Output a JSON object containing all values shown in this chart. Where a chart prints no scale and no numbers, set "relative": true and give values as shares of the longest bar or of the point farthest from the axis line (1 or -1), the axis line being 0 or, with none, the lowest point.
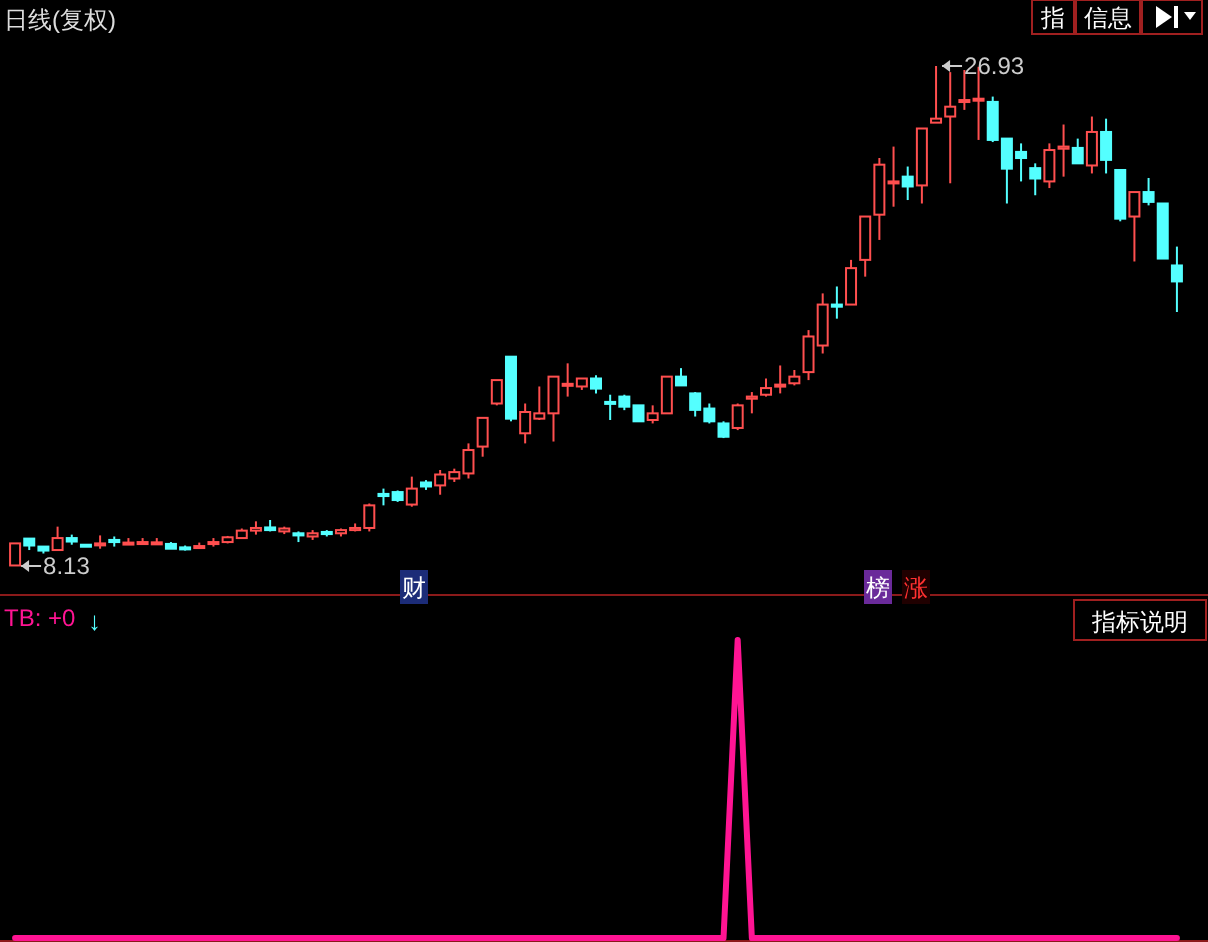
{
  "chart_data": [
    {
      "type": "candlestick",
      "title": "日线(复权)",
      "categories": [
        null,
        null,
        null,
        null,
        null,
        null,
        null,
        null,
        null,
        null,
        null,
        null,
        null,
        null,
        null,
        null,
        null,
        null,
        null,
        null,
        null,
        null,
        null,
        null,
        null,
        null,
        null,
        null,
        null,
        null,
        null,
        null,
        null,
        null,
        null,
        null,
        null,
        null,
        null,
        null,
        null,
        null,
        null,
        null,
        null,
        null,
        null,
        null,
        null,
        null,
        null,
        null,
        null,
        null,
        null,
        null,
        null,
        null,
        null,
        null,
        null,
        null,
        null,
        null,
        null,
        null,
        null,
        null,
        null,
        null,
        null,
        null,
        null,
        null,
        null,
        null,
        null,
        null,
        null,
        null,
        null,
        null,
        null
      ],
      "ohlc": [
        [
          8.15,
          8.98,
          8.13,
          8.98
        ],
        [
          9.16,
          9.16,
          8.73,
          8.9
        ],
        [
          8.86,
          8.86,
          8.6,
          8.71
        ],
        [
          8.73,
          9.61,
          8.73,
          9.18
        ],
        [
          9.18,
          9.31,
          8.93,
          9.05
        ],
        [
          8.93,
          8.93,
          8.86,
          8.86
        ],
        [
          8.93,
          9.28,
          8.78,
          8.98
        ],
        [
          9.11,
          9.24,
          8.86,
          9.03
        ],
        [
          8.98,
          9.18,
          8.96,
          9.01
        ],
        [
          8.98,
          9.18,
          8.96,
          9.03
        ],
        [
          8.99,
          9.18,
          8.96,
          9.02
        ],
        [
          8.96,
          9.03,
          8.78,
          8.78
        ],
        [
          8.83,
          8.9,
          8.71,
          8.78
        ],
        [
          8.83,
          9.01,
          8.78,
          8.88
        ],
        [
          8.96,
          9.18,
          8.86,
          9.03
        ],
        [
          9.03,
          9.26,
          8.98,
          9.21
        ],
        [
          9.18,
          9.54,
          9.16,
          9.46
        ],
        [
          9.46,
          9.81,
          9.31,
          9.56
        ],
        [
          9.58,
          9.86,
          9.43,
          9.48
        ],
        [
          9.43,
          9.61,
          9.33,
          9.54
        ],
        [
          9.36,
          9.43,
          9.03,
          9.28
        ],
        [
          9.24,
          9.48,
          9.11,
          9.36
        ],
        [
          9.41,
          9.48,
          9.24,
          9.33
        ],
        [
          9.36,
          9.54,
          9.24,
          9.48
        ],
        [
          9.48,
          9.73,
          9.43,
          9.56
        ],
        [
          9.56,
          10.48,
          9.43,
          10.41
        ],
        [
          10.84,
          11.04,
          10.41,
          10.76
        ],
        [
          10.91,
          10.97,
          10.54,
          10.61
        ],
        [
          10.44,
          11.49,
          10.36,
          11.04
        ],
        [
          11.27,
          11.36,
          10.99,
          11.12
        ],
        [
          11.16,
          11.74,
          10.81,
          11.57
        ],
        [
          11.42,
          11.79,
          11.29,
          11.66
        ],
        [
          11.61,
          12.74,
          11.42,
          12.49
        ],
        [
          12.62,
          13.7,
          12.24,
          13.7
        ],
        [
          14.24,
          15.12,
          14.17,
          15.12
        ],
        [
          16.0,
          16.0,
          13.57,
          13.67
        ],
        [
          13.12,
          14.24,
          12.74,
          13.92
        ],
        [
          13.67,
          14.88,
          13.62,
          13.87
        ],
        [
          13.87,
          15.25,
          12.81,
          15.25
        ],
        [
          14.92,
          15.75,
          14.5,
          14.98
        ],
        [
          14.88,
          15.18,
          14.75,
          15.18
        ],
        [
          15.18,
          15.3,
          14.62,
          14.8
        ],
        [
          14.3,
          14.57,
          13.62,
          14.24
        ],
        [
          14.5,
          14.57,
          13.99,
          14.12
        ],
        [
          14.17,
          14.17,
          13.57,
          13.57
        ],
        [
          13.62,
          14.17,
          13.49,
          13.87
        ],
        [
          13.87,
          15.25,
          13.87,
          15.25
        ],
        [
          15.25,
          15.57,
          14.92,
          14.92
        ],
        [
          14.62,
          14.67,
          13.75,
          14.0
        ],
        [
          14.05,
          14.24,
          13.49,
          13.57
        ],
        [
          13.49,
          13.57,
          12.94,
          12.99
        ],
        [
          13.32,
          14.24,
          13.24,
          14.17
        ],
        [
          14.42,
          14.67,
          13.87,
          14.5
        ],
        [
          14.57,
          15.18,
          14.5,
          14.82
        ],
        [
          14.88,
          15.67,
          14.62,
          14.95
        ],
        [
          15.0,
          15.5,
          14.92,
          15.25
        ],
        [
          15.42,
          17.0,
          15.12,
          16.76
        ],
        [
          16.42,
          18.38,
          16.12,
          17.96
        ],
        [
          17.96,
          18.64,
          17.43,
          17.88
        ],
        [
          17.96,
          19.64,
          17.96,
          19.33
        ],
        [
          19.64,
          21.27,
          19.01,
          21.27
        ],
        [
          21.34,
          23.47,
          20.39,
          23.22
        ],
        [
          22.52,
          23.9,
          21.64,
          22.59
        ],
        [
          22.77,
          23.15,
          21.89,
          22.4
        ],
        [
          22.44,
          24.58,
          21.76,
          24.58
        ],
        [
          24.8,
          26.93,
          24.8,
          24.95
        ],
        [
          25.03,
          26.7,
          22.52,
          25.4
        ],
        [
          25.58,
          26.78,
          25.28,
          25.65
        ],
        [
          25.65,
          26.9,
          24.15,
          25.7
        ],
        [
          25.58,
          25.78,
          24.07,
          24.15
        ],
        [
          24.2,
          24.2,
          21.76,
          23.07
        ],
        [
          23.7,
          24.02,
          22.59,
          23.47
        ],
        [
          23.09,
          23.27,
          22.07,
          22.7
        ],
        [
          22.59,
          24.02,
          22.34,
          23.77
        ],
        [
          23.82,
          24.73,
          22.77,
          23.9
        ],
        [
          23.85,
          24.2,
          23.27,
          23.27
        ],
        [
          23.19,
          25.03,
          22.89,
          24.45
        ],
        [
          24.45,
          24.95,
          22.89,
          23.4
        ],
        [
          23.02,
          23.02,
          21.09,
          21.19
        ],
        [
          21.27,
          22.19,
          19.58,
          22.19
        ],
        [
          22.19,
          22.72,
          21.69,
          21.82
        ],
        [
          21.76,
          21.76,
          19.69,
          19.69
        ],
        [
          19.43,
          20.14,
          17.68,
          18.83
        ]
      ],
      "annotations": [
        "26.93",
        "8.13",
        "财",
        "榜",
        "涨",
        "指",
        "信息"
      ]
    },
    {
      "type": "line",
      "title": "TB: +0",
      "relative": true,
      "color": "#ff1493",
      "categories": [
        null,
        null,
        null,
        null,
        null,
        null,
        null,
        null,
        null,
        null,
        null,
        null,
        null,
        null,
        null,
        null,
        null,
        null,
        null,
        null,
        null,
        null,
        null,
        null,
        null,
        null,
        null,
        null,
        null,
        null,
        null,
        null,
        null,
        null,
        null,
        null,
        null,
        null,
        null,
        null,
        null,
        null,
        null,
        null,
        null,
        null,
        null,
        null,
        null,
        null,
        null,
        null,
        null,
        null,
        null,
        null,
        null,
        null,
        null,
        null,
        null,
        null,
        null,
        null,
        null,
        null,
        null,
        null,
        null,
        null,
        null,
        null,
        null,
        null,
        null,
        null,
        null,
        null,
        null,
        null,
        null,
        null,
        null
      ],
      "values": [
        0,
        0,
        0,
        0,
        0,
        0,
        0,
        0,
        0,
        0,
        0,
        0,
        0,
        0,
        0,
        0,
        0,
        0,
        0,
        0,
        0,
        0,
        0,
        0,
        0,
        0,
        0,
        0,
        0,
        0,
        0,
        0,
        0,
        0,
        0,
        0,
        0,
        0,
        0,
        0,
        0,
        0,
        0,
        0,
        0,
        0,
        0,
        0,
        0,
        0,
        0,
        1,
        0,
        0,
        0,
        0,
        0,
        0,
        0,
        0,
        0,
        0,
        0,
        0,
        0,
        0,
        0,
        0,
        0,
        0,
        0,
        0,
        0,
        0,
        0,
        0,
        0,
        0,
        0,
        0,
        0,
        0,
        0
      ],
      "annotations": [
        "↓",
        "指标说明"
      ]
    }
  ]
}
